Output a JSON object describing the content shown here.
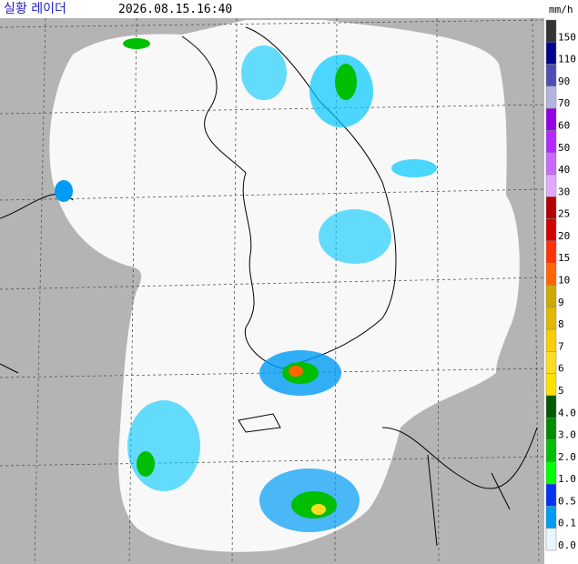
{
  "header": {
    "title": "실황 레이더",
    "time": "2026.08.15.16:40"
  },
  "legend": {
    "unit": "mm/h",
    "items": [
      {
        "label": "150",
        "color": "#333333"
      },
      {
        "label": "110",
        "color": "#000390"
      },
      {
        "label": "90",
        "color": "#4c4eb1"
      },
      {
        "label": "70",
        "color": "#b3b4de"
      },
      {
        "label": "60",
        "color": "#9300e4"
      },
      {
        "label": "50",
        "color": "#b329ff"
      },
      {
        "label": "40",
        "color": "#c969ff"
      },
      {
        "label": "30",
        "color": "#e0a9ff"
      },
      {
        "label": "25",
        "color": "#b40000"
      },
      {
        "label": "20",
        "color": "#d20000"
      },
      {
        "label": "15",
        "color": "#ff3300"
      },
      {
        "label": "10",
        "color": "#ff6600"
      },
      {
        "label": "9",
        "color": "#ccaa00"
      },
      {
        "label": "8",
        "color": "#e0b900"
      },
      {
        "label": "7",
        "color": "#f9cd00"
      },
      {
        "label": "6",
        "color": "#ffdc1f"
      },
      {
        "label": "5",
        "color": "#ffe100"
      },
      {
        "label": "4.0",
        "color": "#005a00"
      },
      {
        "label": "3.0",
        "color": "#008c00"
      },
      {
        "label": "2.0",
        "color": "#00be00"
      },
      {
        "label": "1.0",
        "color": "#00ff00"
      },
      {
        "label": "0.5",
        "color": "#0033f5"
      },
      {
        "label": "0.1",
        "color": "#009bf5"
      },
      {
        "label": "0.0",
        "color": "#e8f6ff"
      }
    ]
  }
}
